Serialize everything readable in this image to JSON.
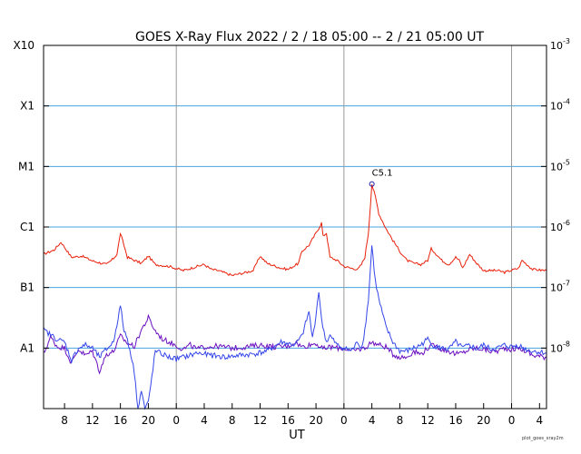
{
  "chart_data": {
    "type": "line",
    "title": "GOES X-Ray Flux   2022 /  2 / 18   05:00 --  2 / 21   05:00   UT",
    "xlabel": "UT",
    "footer": "plot_goes_xray2m",
    "x_tick_labels": [
      "8",
      "12",
      "16",
      "20",
      "0",
      "4",
      "8",
      "12",
      "16",
      "20",
      "0",
      "4",
      "8",
      "12",
      "16",
      "20",
      "0",
      "4"
    ],
    "x_tick_hours": [
      3,
      7,
      11,
      15,
      19,
      23,
      27,
      31,
      35,
      39,
      43,
      47,
      51,
      55,
      59,
      63,
      67,
      71
    ],
    "xlim_hours": [
      0,
      72
    ],
    "day_boundaries_hours": [
      19,
      43,
      67
    ],
    "ylim_log10": [
      -9,
      -3
    ],
    "y_labels_left": [
      {
        "label": "A1",
        "log10": -8
      },
      {
        "label": "B1",
        "log10": -7
      },
      {
        "label": "C1",
        "log10": -6
      },
      {
        "label": "M1",
        "log10": -5
      },
      {
        "label": "X1",
        "log10": -4
      },
      {
        "label": "X10",
        "log10": -3
      }
    ],
    "y_labels_right": [
      {
        "base": "10",
        "exp": "-3",
        "log10": -3
      },
      {
        "base": "10",
        "exp": "-4",
        "log10": -4
      },
      {
        "base": "10",
        "exp": "-5",
        "log10": -5
      },
      {
        "base": "10",
        "exp": "-6",
        "log10": -6
      },
      {
        "base": "10",
        "exp": "-7",
        "log10": -7
      },
      {
        "base": "10",
        "exp": "-8",
        "log10": -8
      }
    ],
    "gridlines_log10": [
      -4,
      -5,
      -6,
      -7,
      -8
    ],
    "annotation": {
      "label": "C5.1",
      "hour": 47,
      "log10": -5.29
    },
    "series": [
      {
        "color": "#e8200a",
        "points": [
          [
            0,
            -6.45
          ],
          [
            1.5,
            -6.38
          ],
          [
            2.5,
            -6.25
          ],
          [
            4,
            -6.5
          ],
          [
            5.5,
            -6.48
          ],
          [
            7,
            -6.56
          ],
          [
            9,
            -6.62
          ],
          [
            10,
            -6.52
          ],
          [
            10.5,
            -6.45
          ],
          [
            11,
            -6.1
          ],
          [
            11.5,
            -6.3
          ],
          [
            12,
            -6.5
          ],
          [
            14,
            -6.6
          ],
          [
            15,
            -6.48
          ],
          [
            16,
            -6.62
          ],
          [
            18,
            -6.65
          ],
          [
            20,
            -6.72
          ],
          [
            22,
            -6.65
          ],
          [
            23,
            -6.62
          ],
          [
            24,
            -6.7
          ],
          [
            25,
            -6.72
          ],
          [
            27,
            -6.8
          ],
          [
            29,
            -6.75
          ],
          [
            30,
            -6.72
          ],
          [
            31,
            -6.48
          ],
          [
            32,
            -6.6
          ],
          [
            34,
            -6.68
          ],
          [
            35,
            -6.7
          ],
          [
            36.5,
            -6.6
          ],
          [
            37,
            -6.4
          ],
          [
            38,
            -6.3
          ],
          [
            39,
            -6.1
          ],
          [
            39.5,
            -6.0
          ],
          [
            39.8,
            -5.93
          ],
          [
            40,
            -6.15
          ],
          [
            40.5,
            -6.1
          ],
          [
            41,
            -6.5
          ],
          [
            42,
            -6.55
          ],
          [
            43,
            -6.65
          ],
          [
            44,
            -6.68
          ],
          [
            45,
            -6.7
          ],
          [
            45.5,
            -6.62
          ],
          [
            46,
            -6.5
          ],
          [
            46.5,
            -6.1
          ],
          [
            47,
            -5.29
          ],
          [
            47.5,
            -5.5
          ],
          [
            48,
            -5.78
          ],
          [
            49,
            -6.02
          ],
          [
            50,
            -6.22
          ],
          [
            51,
            -6.4
          ],
          [
            52,
            -6.55
          ],
          [
            53,
            -6.6
          ],
          [
            54,
            -6.62
          ],
          [
            55,
            -6.55
          ],
          [
            55.5,
            -6.36
          ],
          [
            56,
            -6.42
          ],
          [
            57,
            -6.55
          ],
          [
            58,
            -6.62
          ],
          [
            59,
            -6.5
          ],
          [
            59.5,
            -6.55
          ],
          [
            60,
            -6.68
          ],
          [
            61,
            -6.45
          ],
          [
            62,
            -6.6
          ],
          [
            63,
            -6.72
          ],
          [
            65,
            -6.72
          ],
          [
            66,
            -6.75
          ],
          [
            68,
            -6.68
          ],
          [
            68.5,
            -6.55
          ],
          [
            70,
            -6.7
          ],
          [
            72,
            -6.72
          ]
        ]
      },
      {
        "color": "#6a0fbf",
        "points": [
          [
            0,
            -8.1
          ],
          [
            1,
            -7.82
          ],
          [
            2,
            -7.98
          ],
          [
            3,
            -8.0
          ],
          [
            4,
            -8.25
          ],
          [
            5,
            -8.02
          ],
          [
            6,
            -8.12
          ],
          [
            7,
            -8.05
          ],
          [
            8,
            -8.38
          ],
          [
            9,
            -8.1
          ],
          [
            10,
            -8.06
          ],
          [
            11,
            -7.8
          ],
          [
            12,
            -7.92
          ],
          [
            13,
            -7.97
          ],
          [
            14,
            -7.7
          ],
          [
            15,
            -7.5
          ],
          [
            16,
            -7.72
          ],
          [
            17,
            -7.85
          ],
          [
            18,
            -7.9
          ],
          [
            19,
            -7.96
          ],
          [
            20,
            -8.02
          ],
          [
            21,
            -7.95
          ],
          [
            22,
            -8.02
          ],
          [
            23,
            -7.98
          ],
          [
            25,
            -7.97
          ],
          [
            27,
            -8.0
          ],
          [
            29,
            -7.98
          ],
          [
            31,
            -7.95
          ],
          [
            33,
            -7.98
          ],
          [
            35,
            -7.97
          ],
          [
            36,
            -7.9
          ],
          [
            37,
            -7.98
          ],
          [
            38,
            -7.95
          ],
          [
            39,
            -7.92
          ],
          [
            40,
            -8.02
          ],
          [
            41,
            -7.98
          ],
          [
            42,
            -8.0
          ],
          [
            43,
            -8.0
          ],
          [
            44,
            -8.05
          ],
          [
            46,
            -8.0
          ],
          [
            47,
            -7.9
          ],
          [
            48,
            -7.95
          ],
          [
            49,
            -7.98
          ],
          [
            50,
            -8.1
          ],
          [
            51,
            -8.15
          ],
          [
            52,
            -8.15
          ],
          [
            53,
            -8.05
          ],
          [
            54,
            -8.1
          ],
          [
            55,
            -8.0
          ],
          [
            56,
            -7.95
          ],
          [
            57,
            -8.02
          ],
          [
            58,
            -8.05
          ],
          [
            59,
            -8.1
          ],
          [
            60,
            -8.08
          ],
          [
            61,
            -8.02
          ],
          [
            62,
            -8.0
          ],
          [
            63,
            -8.02
          ],
          [
            64,
            -8.05
          ],
          [
            65,
            -8.05
          ],
          [
            66,
            -8.0
          ],
          [
            67,
            -8.02
          ],
          [
            68,
            -8.0
          ],
          [
            69,
            -8.05
          ],
          [
            70,
            -8.12
          ],
          [
            72,
            -8.15
          ]
        ]
      },
      {
        "color": "#3546e8",
        "points": [
          [
            0,
            -7.7
          ],
          [
            1,
            -7.78
          ],
          [
            2,
            -7.86
          ],
          [
            3,
            -7.9
          ],
          [
            4,
            -8.2
          ],
          [
            5,
            -8.0
          ],
          [
            6,
            -7.95
          ],
          [
            7,
            -8.0
          ],
          [
            8,
            -8.15
          ],
          [
            9,
            -8.02
          ],
          [
            10,
            -7.9
          ],
          [
            11,
            -7.3
          ],
          [
            11.5,
            -7.7
          ],
          [
            12,
            -7.85
          ],
          [
            12.5,
            -8.1
          ],
          [
            13,
            -8.4
          ],
          [
            13.5,
            -9.0
          ],
          [
            14,
            -8.7
          ],
          [
            14.5,
            -9.0
          ],
          [
            15,
            -8.9
          ],
          [
            16,
            -8.05
          ],
          [
            17,
            -8.1
          ],
          [
            18,
            -8.15
          ],
          [
            19,
            -8.18
          ],
          [
            20,
            -8.15
          ],
          [
            21,
            -8.12
          ],
          [
            22,
            -8.08
          ],
          [
            24,
            -8.12
          ],
          [
            26,
            -8.15
          ],
          [
            28,
            -8.12
          ],
          [
            30,
            -8.1
          ],
          [
            32,
            -8.05
          ],
          [
            34,
            -7.9
          ],
          [
            36,
            -7.95
          ],
          [
            37,
            -7.8
          ],
          [
            38,
            -7.4
          ],
          [
            38.5,
            -7.85
          ],
          [
            39,
            -7.45
          ],
          [
            39.4,
            -7.05
          ],
          [
            39.8,
            -7.55
          ],
          [
            40.5,
            -7.9
          ],
          [
            41,
            -7.8
          ],
          [
            42,
            -7.95
          ],
          [
            43,
            -8.0
          ],
          [
            44,
            -8.05
          ],
          [
            45,
            -7.9
          ],
          [
            45.5,
            -8.0
          ],
          [
            46,
            -7.7
          ],
          [
            46.5,
            -7.2
          ],
          [
            47,
            -6.3
          ],
          [
            47.5,
            -6.9
          ],
          [
            48,
            -7.2
          ],
          [
            49,
            -7.65
          ],
          [
            50,
            -7.9
          ],
          [
            51,
            -8.05
          ],
          [
            52,
            -8.05
          ],
          [
            53,
            -8.0
          ],
          [
            54,
            -7.95
          ],
          [
            55,
            -7.85
          ],
          [
            56,
            -7.98
          ],
          [
            57,
            -8.0
          ],
          [
            58,
            -8.02
          ],
          [
            59,
            -7.9
          ],
          [
            60,
            -8.0
          ],
          [
            61,
            -7.95
          ],
          [
            62,
            -8.02
          ],
          [
            63,
            -7.95
          ],
          [
            64,
            -8.02
          ],
          [
            65,
            -8.0
          ],
          [
            66,
            -7.95
          ],
          [
            67,
            -7.98
          ],
          [
            68,
            -7.95
          ],
          [
            69,
            -8.02
          ],
          [
            70,
            -8.05
          ],
          [
            72,
            -8.08
          ]
        ]
      }
    ]
  }
}
